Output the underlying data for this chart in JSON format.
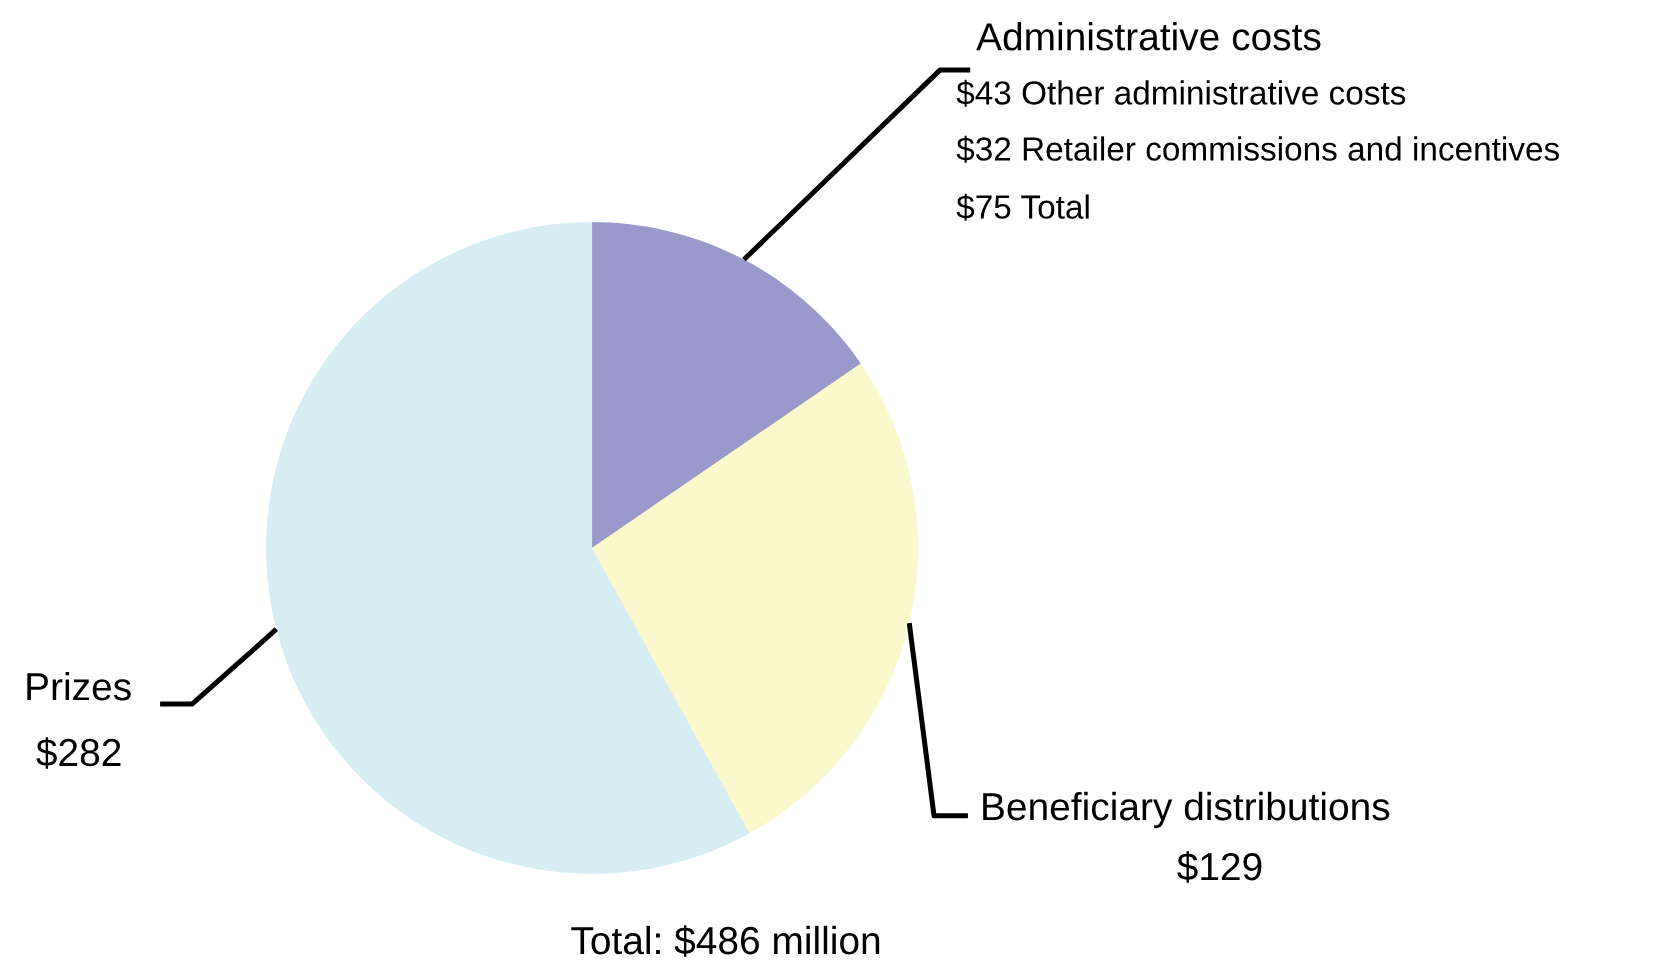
{
  "chart_data": {
    "type": "pie",
    "categories": [
      "Administrative costs",
      "Beneficiary distributions",
      "Prizes"
    ],
    "values": [
      75,
      129,
      282
    ],
    "colors": [
      "#9999cc",
      "#fbf8cc",
      "#d5edf3"
    ],
    "value_labels": [
      null,
      "$129",
      "$282"
    ],
    "annotations": [
      "$43 Other administrative costs",
      "$32 Retailer commissions and incentives",
      "$75 Total",
      "Total: $486 million"
    ]
  }
}
